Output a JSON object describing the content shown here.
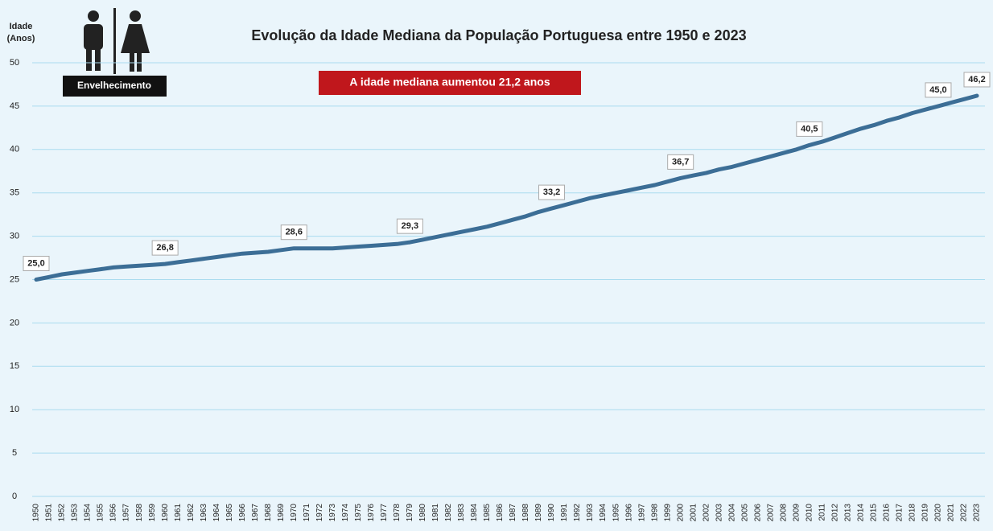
{
  "chart_data": {
    "type": "line",
    "title": "Evolução da Idade Mediana da População Portuguesa entre 1950 e 2023",
    "ylabel": [
      "Idade",
      "(Anos)"
    ],
    "annotation": "A idade mediana aumentou 21,2 anos",
    "icon_label": "Envelhecimento",
    "x": [
      1950,
      1951,
      1952,
      1953,
      1954,
      1955,
      1956,
      1957,
      1958,
      1959,
      1960,
      1961,
      1962,
      1963,
      1964,
      1965,
      1966,
      1967,
      1968,
      1969,
      1970,
      1971,
      1972,
      1973,
      1974,
      1975,
      1976,
      1977,
      1978,
      1979,
      1980,
      1981,
      1982,
      1983,
      1984,
      1985,
      1986,
      1987,
      1988,
      1989,
      1990,
      1991,
      1992,
      1993,
      1994,
      1995,
      1996,
      1997,
      1998,
      1999,
      2000,
      2001,
      2002,
      2003,
      2004,
      2005,
      2006,
      2007,
      2008,
      2009,
      2010,
      2011,
      2012,
      2013,
      2014,
      2015,
      2016,
      2017,
      2018,
      2019,
      2020,
      2021,
      2022,
      2023
    ],
    "values": [
      25.0,
      25.3,
      25.6,
      25.8,
      26.0,
      26.2,
      26.4,
      26.5,
      26.6,
      26.7,
      26.8,
      27.0,
      27.2,
      27.4,
      27.6,
      27.8,
      28.0,
      28.1,
      28.2,
      28.4,
      28.6,
      28.6,
      28.6,
      28.6,
      28.7,
      28.8,
      28.9,
      29.0,
      29.1,
      29.3,
      29.6,
      29.9,
      30.2,
      30.5,
      30.8,
      31.1,
      31.5,
      31.9,
      32.3,
      32.8,
      33.2,
      33.6,
      34.0,
      34.4,
      34.7,
      35.0,
      35.3,
      35.6,
      35.9,
      36.3,
      36.7,
      37.0,
      37.3,
      37.7,
      38.0,
      38.4,
      38.8,
      39.2,
      39.6,
      40.0,
      40.5,
      40.9,
      41.4,
      41.9,
      42.4,
      42.8,
      43.3,
      43.7,
      44.2,
      44.6,
      45.0,
      45.4,
      45.8,
      46.2
    ],
    "value_labels": [
      "25,0",
      null,
      null,
      null,
      null,
      null,
      null,
      null,
      null,
      null,
      "26,8",
      null,
      null,
      null,
      null,
      null,
      null,
      null,
      null,
      null,
      "28,6",
      null,
      null,
      null,
      null,
      null,
      null,
      null,
      null,
      "29,3",
      null,
      null,
      null,
      null,
      null,
      null,
      null,
      null,
      null,
      null,
      "33,2",
      null,
      null,
      null,
      null,
      null,
      null,
      null,
      null,
      null,
      "36,7",
      null,
      null,
      null,
      null,
      null,
      null,
      null,
      null,
      null,
      "40,5",
      null,
      null,
      null,
      null,
      null,
      null,
      null,
      null,
      null,
      "45,0",
      null,
      null,
      "46,2"
    ],
    "color": "#3c6e96",
    "xlim": [
      1950,
      2023
    ],
    "ylim": [
      0,
      50
    ],
    "yticks": [
      0,
      5,
      10,
      15,
      20,
      25,
      30,
      35,
      40,
      45,
      50
    ],
    "grid": true
  }
}
